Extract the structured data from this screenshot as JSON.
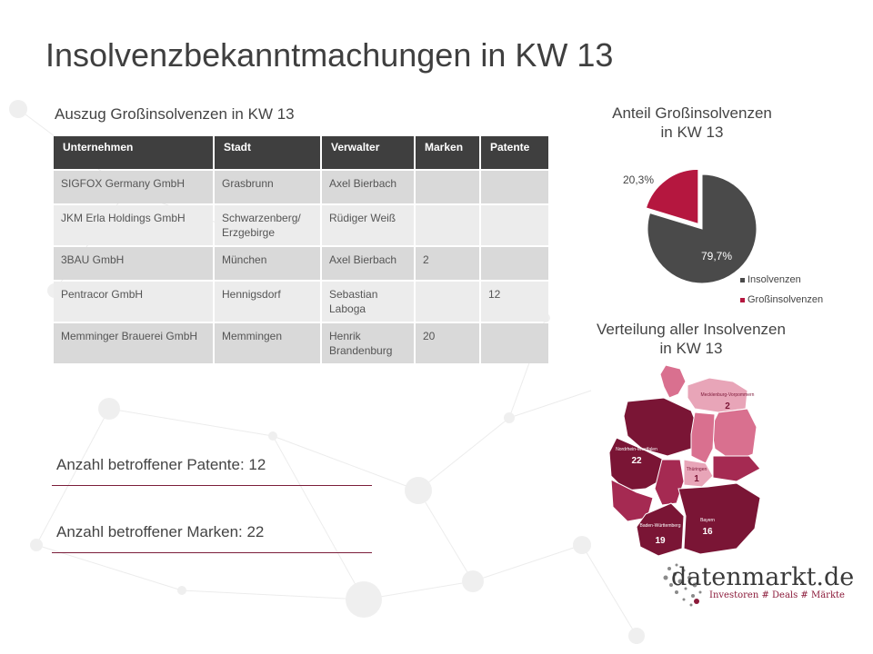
{
  "page": {
    "title": "Insolvenzbekanntmachungen in KW 13",
    "table_title": "Auszug Großinsolvenzen in KW 13"
  },
  "table": {
    "headers": [
      "Unternehmen",
      "Stadt",
      "Verwalter",
      "Marken",
      "Patente"
    ],
    "rows": [
      [
        "SIGFOX Germany GmbH",
        "Grasbrunn",
        "Axel Bierbach",
        "",
        ""
      ],
      [
        "JKM Erla Holdings GmbH",
        "Schwarzenberg/ Erzgebirge",
        "Rüdiger Weiß",
        "",
        ""
      ],
      [
        "3BAU GmbH",
        "München",
        "Axel Bierbach",
        "2",
        ""
      ],
      [
        "Pentracor GmbH",
        "Hennigsdorf",
        "Sebastian Laboga",
        "",
        "12"
      ],
      [
        "Memminger Brauerei GmbH",
        "Memmingen",
        "Henrik Brandenburg",
        "20",
        ""
      ]
    ]
  },
  "stats": {
    "patents": "Anzahl betroffener Patente: 12",
    "marks": "Anzahl betroffener Marken: 22"
  },
  "pie": {
    "title_line1": "Anteil Großinsolvenzen",
    "title_line2": "in KW 13",
    "colors": {
      "insolvenzen": "#4a4a4a",
      "gross": "#b5173f"
    }
  },
  "chart_data": {
    "type": "pie",
    "title": "Anteil Großinsolvenzen in KW 13",
    "labels": [
      "Insolvenzen",
      "Großinsolvenzen"
    ],
    "values": [
      79.7,
      20.3
    ],
    "value_labels": [
      "79,7%",
      "20,3%"
    ],
    "legend": "bottom-right"
  },
  "map": {
    "title_line1": "Verteilung aller Insolvenzen",
    "title_line2": "in KW 13",
    "regions": [
      {
        "name": "Mecklenburg-Vorpommern",
        "value": "2"
      },
      {
        "name": "Nordrhein-Westfalen",
        "value": "22"
      },
      {
        "name": "Thüringen",
        "value": "1"
      },
      {
        "name": "Bayern",
        "value": "16"
      },
      {
        "name": "Baden-Württemberg",
        "value": "19"
      }
    ],
    "colors": {
      "dark": "#7a1535",
      "mid": "#a52a52",
      "light": "#d9708f",
      "lighter": "#e8a5b8"
    }
  },
  "logo": {
    "name": "datenmarkt.de",
    "tagline": "Investoren # Deals # Märkte"
  }
}
